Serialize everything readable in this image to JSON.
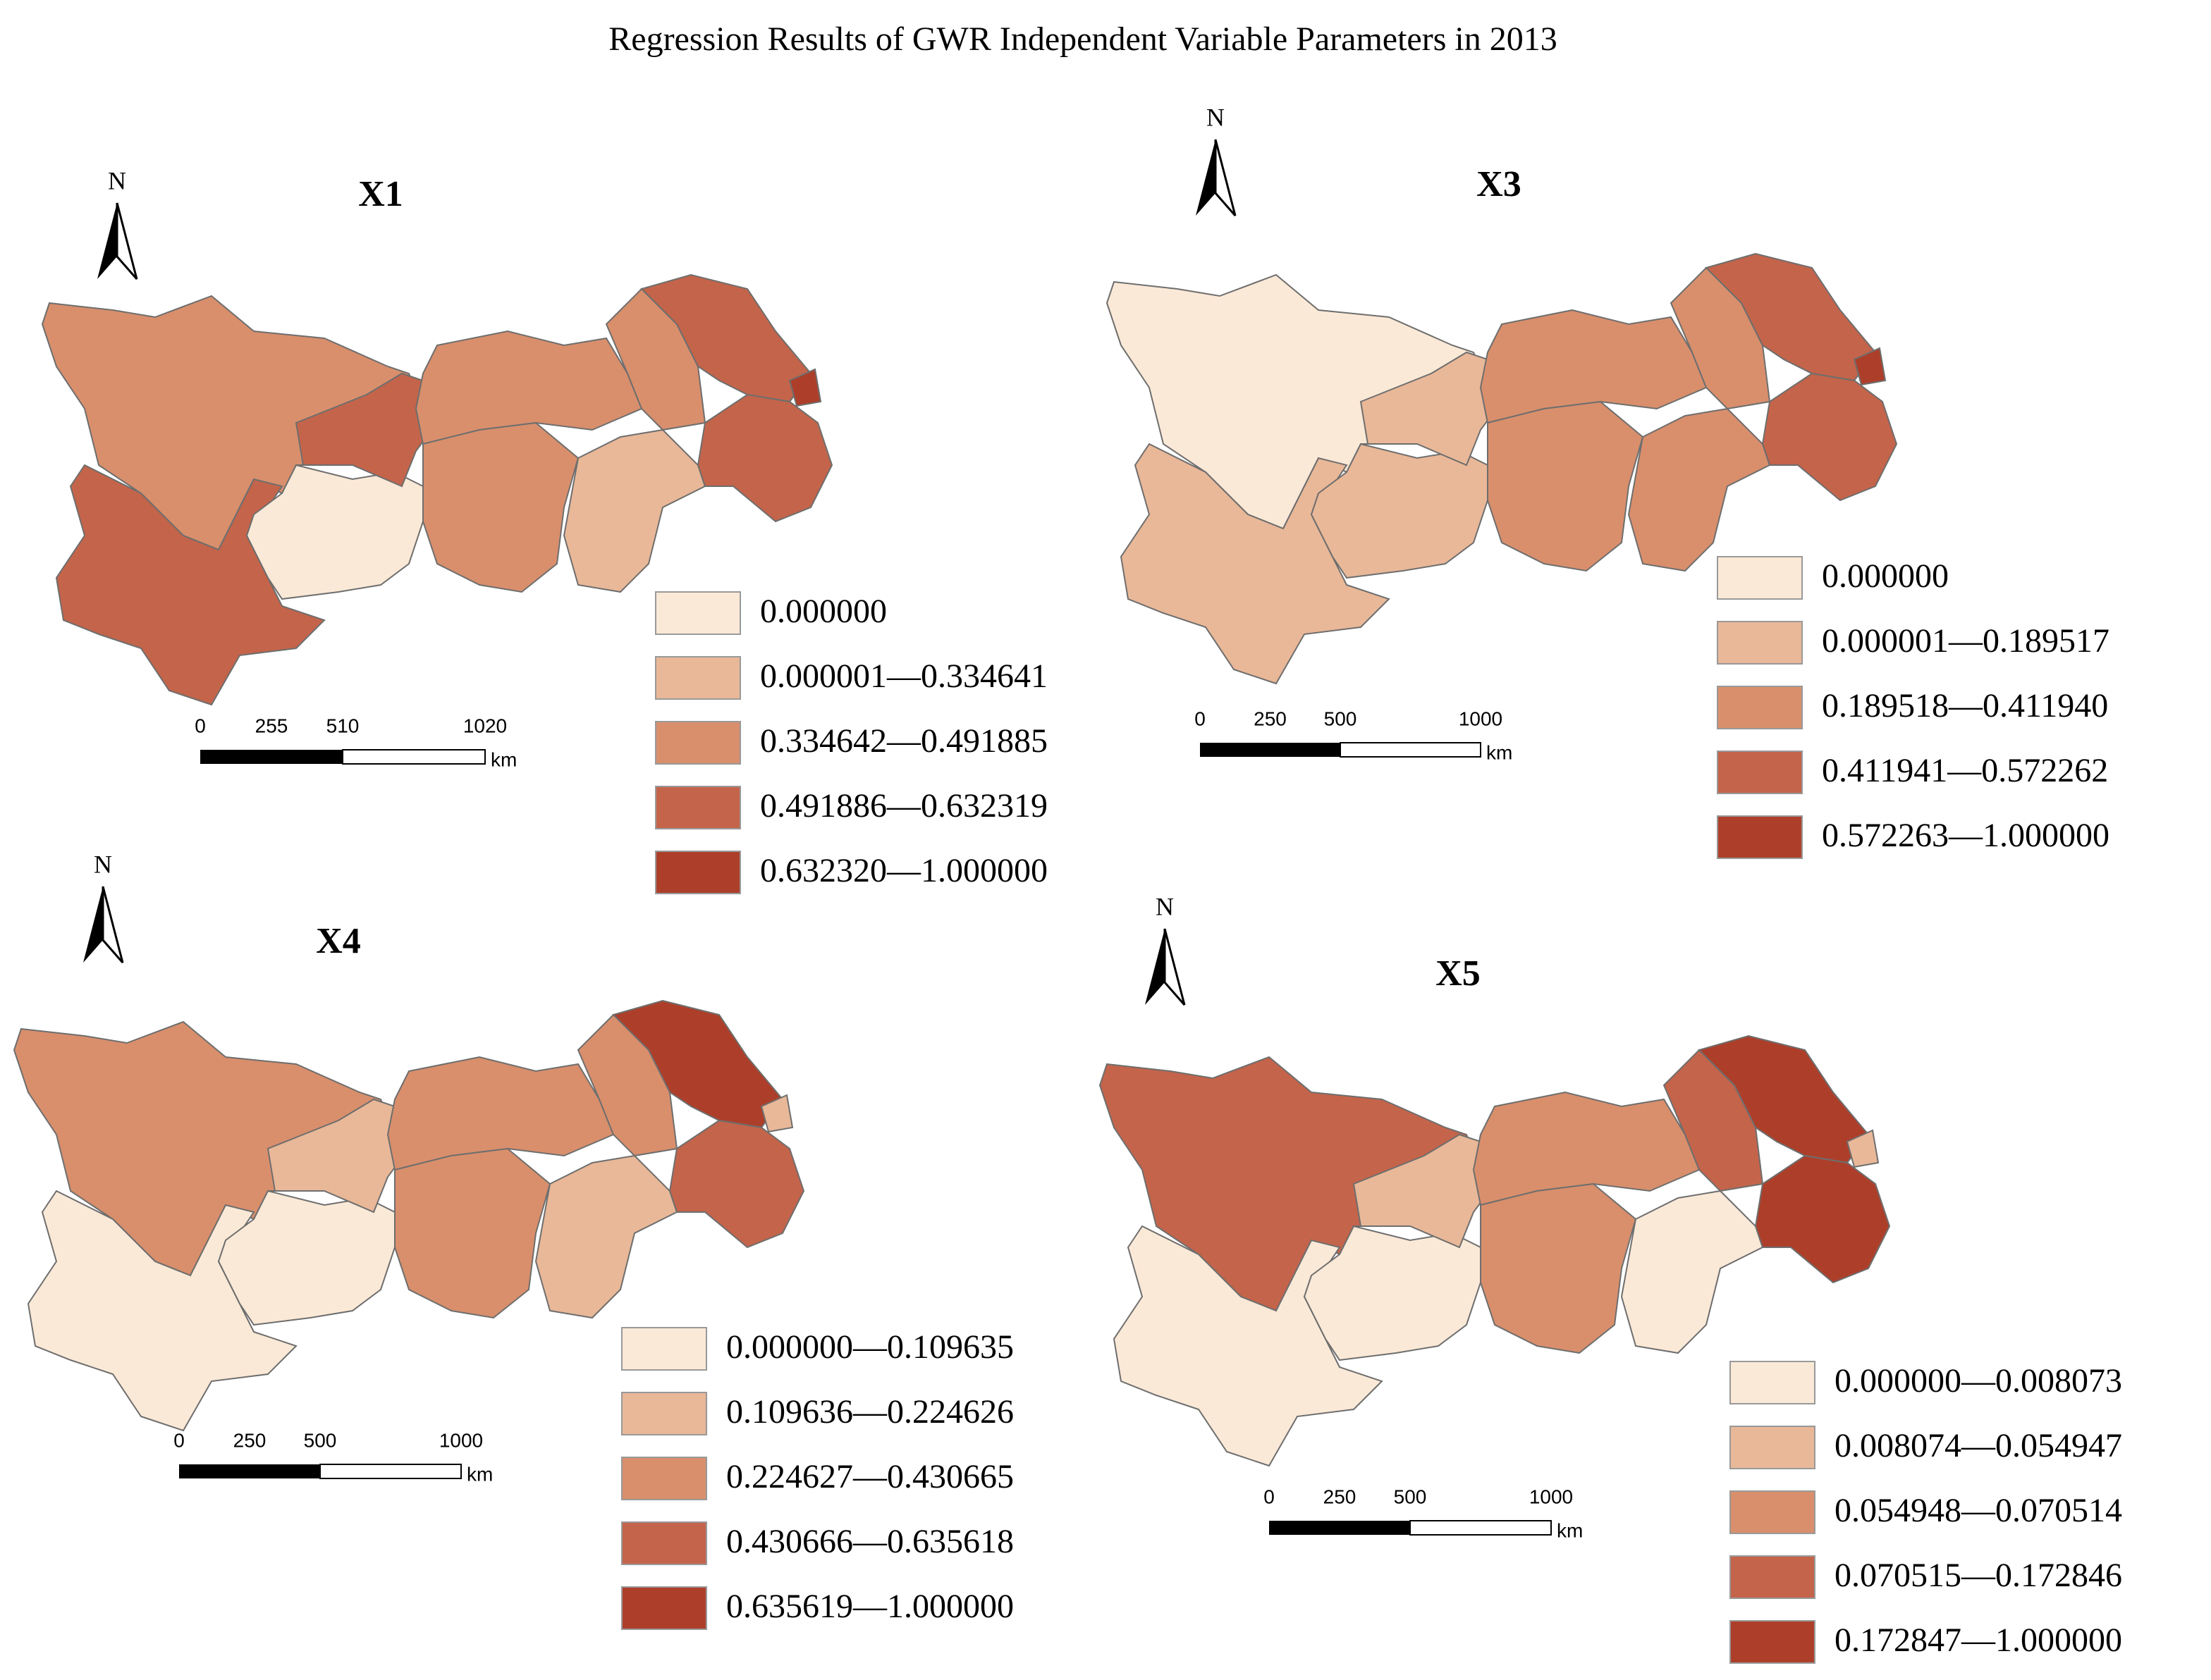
{
  "title": "Regression Results of GWR Independent Variable Parameters in 2013",
  "panels": [
    {
      "title": "X1",
      "north": "N",
      "scale_labels": [
        "0",
        "255",
        "510",
        "1020",
        "km"
      ],
      "legend": [
        {
          "label": "0.000000",
          "color": "#fbe9d7"
        },
        {
          "label": "0.000001—0.334641",
          "color": "#e9b898"
        },
        {
          "label": "0.334642—0.491885",
          "color": "#d98f6c"
        },
        {
          "label": "0.491886—0.632319",
          "color": "#c4644a"
        },
        {
          "label": "0.632320—1.000000",
          "color": "#ad3f2a"
        }
      ]
    },
    {
      "title": "X3",
      "north": "N",
      "scale_labels": [
        "0",
        "250",
        "500",
        "1000",
        "km"
      ],
      "legend": [
        {
          "label": "0.000000",
          "color": "#fbe9d7"
        },
        {
          "label": "0.000001—0.189517",
          "color": "#e9b898"
        },
        {
          "label": "0.189518—0.411940",
          "color": "#d98f6c"
        },
        {
          "label": "0.411941—0.572262",
          "color": "#c4644a"
        },
        {
          "label": "0.572263—1.000000",
          "color": "#ad3f2a"
        }
      ]
    },
    {
      "title": "X4",
      "north": "N",
      "scale_labels": [
        "0",
        "250",
        "500",
        "1000",
        "km"
      ],
      "legend": [
        {
          "label": "0.000000—0.109635",
          "color": "#fbe9d7"
        },
        {
          "label": "0.109636—0.224626",
          "color": "#e9b898"
        },
        {
          "label": "0.224627—0.430665",
          "color": "#d98f6c"
        },
        {
          "label": "0.430666—0.635618",
          "color": "#c4644a"
        },
        {
          "label": "0.635619—1.000000",
          "color": "#ad3f2a"
        }
      ]
    },
    {
      "title": "X5",
      "north": "N",
      "scale_labels": [
        "0",
        "250",
        "500",
        "1000",
        "km"
      ],
      "legend": [
        {
          "label": "0.000000—0.008073",
          "color": "#fbe9d7"
        },
        {
          "label": "0.008074—0.054947",
          "color": "#e9b898"
        },
        {
          "label": "0.054948—0.070514",
          "color": "#d98f6c"
        },
        {
          "label": "0.070515—0.172846",
          "color": "#c4644a"
        },
        {
          "label": "0.172847—1.000000",
          "color": "#ad3f2a"
        }
      ]
    }
  ]
}
